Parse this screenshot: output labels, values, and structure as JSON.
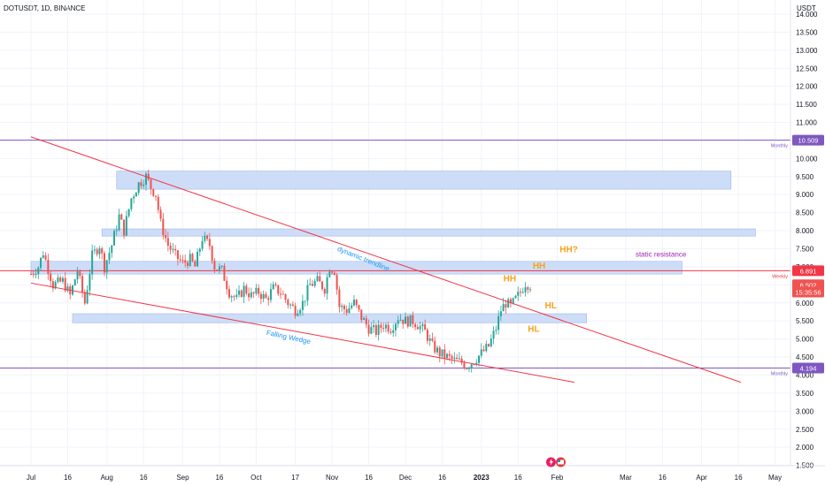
{
  "header": {
    "symbol": "DOTUSDT, 1D, BINANCE"
  },
  "colors": {
    "up": "#26a69a",
    "down": "#ef5350",
    "trend": "#f23645",
    "zone_fill": "#c5d7f6",
    "zone_stroke": "#9ab7ec",
    "monthly_line": "#7e57c2",
    "weekly_line": "#f23645",
    "hh_hl": "#f7a21b",
    "annotation_blue": "#2196f3",
    "static_res": "#9c27b0"
  },
  "icons": [
    "lightning-icon",
    "flag-icon"
  ],
  "chart_data": {
    "type": "candlestick",
    "axis": {
      "currency_label": "USDT",
      "ylim": [
        1.3,
        14.5
      ],
      "y_ticks": [
        "1.500",
        "2.000",
        "2.500",
        "3.000",
        "3.500",
        "4.000",
        "4.500",
        "5.000",
        "5.500",
        "6.000",
        "6.500",
        "7.000",
        "7.500",
        "8.000",
        "8.500",
        "9.000",
        "9.500",
        "10.000",
        "10.500",
        "11.000",
        "11.500",
        "12.000",
        "12.500",
        "13.000",
        "13.500",
        "14.000"
      ],
      "x_ticks": [
        {
          "label": "Jul",
          "day": 0
        },
        {
          "label": "16",
          "day": 15
        },
        {
          "label": "Aug",
          "day": 31
        },
        {
          "label": "16",
          "day": 46
        },
        {
          "label": "Sep",
          "day": 62
        },
        {
          "label": "16",
          "day": 77
        },
        {
          "label": "Oct",
          "day": 92
        },
        {
          "label": "17",
          "day": 108
        },
        {
          "label": "Nov",
          "day": 123
        },
        {
          "label": "16",
          "day": 138
        },
        {
          "label": "Dec",
          "day": 153
        },
        {
          "label": "16",
          "day": 168
        },
        {
          "label": "2023",
          "day": 184,
          "bold": true
        },
        {
          "label": "16",
          "day": 199
        },
        {
          "label": "Feb",
          "day": 215
        },
        {
          "label": "Mar",
          "day": 243
        },
        {
          "label": "16",
          "day": 258
        },
        {
          "label": "Apr",
          "day": 274
        },
        {
          "label": "16",
          "day": 289
        },
        {
          "label": "May",
          "day": 304
        }
      ]
    },
    "price_tags": [
      {
        "label": "10.509",
        "value": 10.509,
        "color": "#7e57c2"
      },
      {
        "label": "6.891",
        "value": 6.891,
        "color": "#f23645"
      },
      {
        "label": "6.502",
        "value": 6.502,
        "color": "#ef5350"
      },
      {
        "label": "15:35:56",
        "value": 6.3,
        "color": "#ef5350"
      },
      {
        "label": "4.194",
        "value": 4.194,
        "color": "#7e57c2"
      }
    ],
    "hlines": [
      {
        "value": 10.509,
        "label": "Monthly",
        "color": "#7e57c2"
      },
      {
        "value": 6.891,
        "label": "Weekly",
        "color": "#f23645"
      },
      {
        "value": 4.194,
        "label": "Monthly",
        "color": "#7e57c2"
      }
    ],
    "zones": [
      {
        "d0": 35,
        "d1": 286,
        "top": 9.65,
        "bottom": 9.15
      },
      {
        "d0": 29,
        "d1": 296,
        "top": 8.05,
        "bottom": 7.85
      },
      {
        "d0": 0,
        "d1": 266,
        "top": 7.15,
        "bottom": 6.8
      },
      {
        "d0": 17,
        "d1": 227,
        "top": 5.7,
        "bottom": 5.45
      }
    ],
    "trendlines": [
      {
        "d0": 0,
        "v0": 10.6,
        "d1": 290,
        "v1": 3.8
      },
      {
        "d0": 0,
        "v0": 6.55,
        "d1": 222,
        "v1": 3.8
      }
    ],
    "annotations": [
      {
        "text": "dynamic trendline",
        "day": 125,
        "value": 7.45,
        "color": "#2196f3",
        "rotate": 22,
        "size": 8
      },
      {
        "text": "Falling Wedge",
        "day": 96,
        "value": 5.12,
        "color": "#2196f3",
        "rotate": 12,
        "size": 8
      },
      {
        "text": "static resistance",
        "day": 247,
        "value": 7.28,
        "color": "#9c27b0",
        "rotate": 0,
        "size": 8
      },
      {
        "text": "HH?",
        "day": 216,
        "value": 7.4,
        "color": "#f7a21b",
        "rotate": 0,
        "size": 10,
        "bold": true
      },
      {
        "text": "HH",
        "day": 205,
        "value": 6.95,
        "color": "#f7a21b",
        "rotate": 0,
        "size": 10,
        "bold": true
      },
      {
        "text": "HH",
        "day": 193,
        "value": 6.6,
        "color": "#f7a21b",
        "rotate": 0,
        "size": 10,
        "bold": true
      },
      {
        "text": "HL",
        "day": 210,
        "value": 5.85,
        "color": "#f7a21b",
        "rotate": 0,
        "size": 10,
        "bold": true
      },
      {
        "text": "HL",
        "day": 203,
        "value": 5.2,
        "color": "#f7a21b",
        "rotate": 0,
        "size": 10,
        "bold": true
      }
    ],
    "pivots": [
      [
        0,
        6.8
      ],
      [
        3,
        7.0
      ],
      [
        5,
        7.4
      ],
      [
        9,
        6.5
      ],
      [
        13,
        6.6
      ],
      [
        16,
        6.2
      ],
      [
        19,
        6.9
      ],
      [
        22,
        6.0
      ],
      [
        25,
        7.3
      ],
      [
        28,
        7.6
      ],
      [
        30,
        7.0
      ],
      [
        33,
        7.6
      ],
      [
        36,
        8.4
      ],
      [
        38,
        8.0
      ],
      [
        41,
        8.9
      ],
      [
        44,
        9.3
      ],
      [
        47,
        9.5
      ],
      [
        49,
        9.2
      ],
      [
        51,
        9.0
      ],
      [
        53,
        8.2
      ],
      [
        56,
        7.6
      ],
      [
        59,
        7.3
      ],
      [
        62,
        7.1
      ],
      [
        65,
        7.2
      ],
      [
        67,
        7.0
      ],
      [
        70,
        7.8
      ],
      [
        73,
        7.6
      ],
      [
        75,
        7.0
      ],
      [
        78,
        6.9
      ],
      [
        81,
        6.3
      ],
      [
        84,
        6.1
      ],
      [
        87,
        6.4
      ],
      [
        90,
        6.2
      ],
      [
        93,
        6.3
      ],
      [
        96,
        6.1
      ],
      [
        99,
        6.4
      ],
      [
        102,
        6.3
      ],
      [
        105,
        6.0
      ],
      [
        108,
        5.8
      ],
      [
        111,
        6.0
      ],
      [
        114,
        6.5
      ],
      [
        117,
        6.6
      ],
      [
        120,
        6.4
      ],
      [
        122,
        7.0
      ],
      [
        124,
        6.9
      ],
      [
        126,
        5.9
      ],
      [
        129,
        5.8
      ],
      [
        132,
        6.0
      ],
      [
        135,
        5.6
      ],
      [
        138,
        5.3
      ],
      [
        141,
        5.2
      ],
      [
        144,
        5.4
      ],
      [
        147,
        5.3
      ],
      [
        150,
        5.6
      ],
      [
        153,
        5.5
      ],
      [
        156,
        5.5
      ],
      [
        158,
        5.4
      ],
      [
        161,
        5.2
      ],
      [
        164,
        4.8
      ],
      [
        167,
        4.6
      ],
      [
        170,
        4.5
      ],
      [
        173,
        4.4
      ],
      [
        176,
        4.35
      ],
      [
        178,
        4.25
      ],
      [
        181,
        4.4
      ],
      [
        184,
        4.6
      ],
      [
        187,
        4.8
      ],
      [
        190,
        5.3
      ],
      [
        192,
        5.8
      ],
      [
        194,
        6.0
      ],
      [
        196,
        5.9
      ],
      [
        198,
        6.1
      ],
      [
        200,
        6.3
      ],
      [
        202,
        6.55
      ],
      [
        204,
        6.5
      ]
    ]
  }
}
